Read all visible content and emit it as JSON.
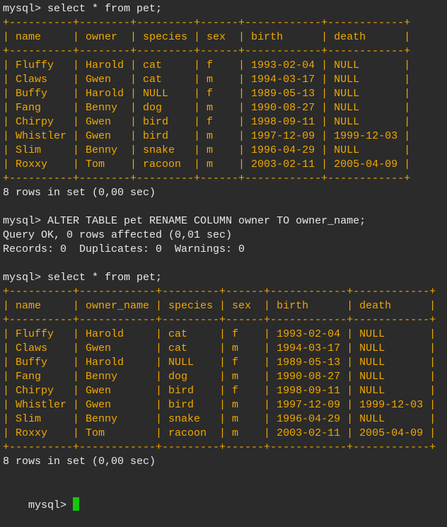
{
  "colors": {
    "background": "#2b2b2b",
    "text": "#e8e8e8",
    "table_text": "#f0a800",
    "cursor": "#16c60c"
  },
  "lines": [
    {
      "text": "mysql> select * from pet;",
      "color": "#e8e8e8"
    },
    {
      "text": "+----------+--------+---------+------+------------+------------+",
      "color": "#f0a800"
    },
    {
      "text": "| name     | owner  | species | sex  | birth      | death      |",
      "color": "#f0a800"
    },
    {
      "text": "+----------+--------+---------+------+------------+------------+",
      "color": "#f0a800"
    },
    {
      "text": "| Fluffy   | Harold | cat     | f    | 1993-02-04 | NULL       |",
      "color": "#f0a800"
    },
    {
      "text": "| Claws    | Gwen   | cat     | m    | 1994-03-17 | NULL       |",
      "color": "#f0a800"
    },
    {
      "text": "| Buffy    | Harold | NULL    | f    | 1989-05-13 | NULL       |",
      "color": "#f0a800"
    },
    {
      "text": "| Fang     | Benny  | dog     | m    | 1990-08-27 | NULL       |",
      "color": "#f0a800"
    },
    {
      "text": "| Chirpy   | Gwen   | bird    | f    | 1998-09-11 | NULL       |",
      "color": "#f0a800"
    },
    {
      "text": "| Whistler | Gwen   | bird    | m    | 1997-12-09 | 1999-12-03 |",
      "color": "#f0a800"
    },
    {
      "text": "| Slim     | Benny  | snake   | m    | 1996-04-29 | NULL       |",
      "color": "#f0a800"
    },
    {
      "text": "| Roxxy    | Tom    | racoon  | m    | 2003-02-11 | 2005-04-09 |",
      "color": "#f0a800"
    },
    {
      "text": "+----------+--------+---------+------+------------+------------+",
      "color": "#f0a800"
    },
    {
      "text": "8 rows in set (0,00 sec)",
      "color": "#e8e8e8"
    },
    {
      "text": "",
      "color": "#e8e8e8"
    },
    {
      "text": "mysql> ALTER TABLE pet RENAME COLUMN owner TO owner_name;",
      "color": "#e8e8e8"
    },
    {
      "text": "Query OK, 0 rows affected (0,01 sec)",
      "color": "#e8e8e8"
    },
    {
      "text": "Records: 0  Duplicates: 0  Warnings: 0",
      "color": "#e8e8e8"
    },
    {
      "text": "",
      "color": "#e8e8e8"
    },
    {
      "text": "mysql> select * from pet;",
      "color": "#e8e8e8"
    },
    {
      "text": "+----------+------------+---------+------+------------+------------+",
      "color": "#f0a800"
    },
    {
      "text": "| name     | owner_name | species | sex  | birth      | death      |",
      "color": "#f0a800"
    },
    {
      "text": "+----------+------------+---------+------+------------+------------+",
      "color": "#f0a800"
    },
    {
      "text": "| Fluffy   | Harold     | cat     | f    | 1993-02-04 | NULL       |",
      "color": "#f0a800"
    },
    {
      "text": "| Claws    | Gwen       | cat     | m    | 1994-03-17 | NULL       |",
      "color": "#f0a800"
    },
    {
      "text": "| Buffy    | Harold     | NULL    | f    | 1989-05-13 | NULL       |",
      "color": "#f0a800"
    },
    {
      "text": "| Fang     | Benny      | dog     | m    | 1990-08-27 | NULL       |",
      "color": "#f0a800"
    },
    {
      "text": "| Chirpy   | Gwen       | bird    | f    | 1998-09-11 | NULL       |",
      "color": "#f0a800"
    },
    {
      "text": "| Whistler | Gwen       | bird    | m    | 1997-12-09 | 1999-12-03 |",
      "color": "#f0a800"
    },
    {
      "text": "| Slim     | Benny      | snake   | m    | 1996-04-29 | NULL       |",
      "color": "#f0a800"
    },
    {
      "text": "| Roxxy    | Tom        | racoon  | m    | 2003-02-11 | 2005-04-09 |",
      "color": "#f0a800"
    },
    {
      "text": "+----------+------------+---------+------+------------+------------+",
      "color": "#f0a800"
    },
    {
      "text": "8 rows in set (0,00 sec)",
      "color": "#e8e8e8"
    },
    {
      "text": "",
      "color": "#e8e8e8"
    }
  ],
  "prompt": {
    "text": "mysql> ",
    "input_value": ""
  }
}
